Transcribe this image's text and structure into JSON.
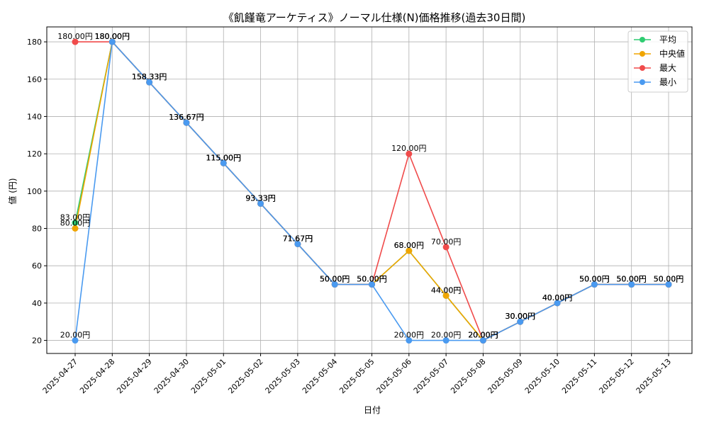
{
  "chart_data": {
    "type": "line",
    "title": "《飢饉竜アーケティス》ノーマル仕様(N)価格推移(過去30日間)",
    "xlabel": "日付",
    "ylabel": "値 (円)",
    "ylim": [
      13,
      188
    ],
    "yticks": [
      20,
      40,
      60,
      80,
      100,
      120,
      140,
      160,
      180
    ],
    "grid": true,
    "legend_position": "top-right",
    "categories": [
      "2025-04-27",
      "2025-04-28",
      "2025-04-29",
      "2025-04-30",
      "2025-05-01",
      "2025-05-02",
      "2025-05-03",
      "2025-05-04",
      "2025-05-05",
      "2025-05-06",
      "2025-05-07",
      "2025-05-08",
      "2025-05-09",
      "2025-05-10",
      "2025-05-11",
      "2025-05-12",
      "2025-05-13"
    ],
    "series": [
      {
        "name": "平均",
        "color": "#2ecc71",
        "values": [
          83.0,
          180.0,
          158.33,
          136.67,
          115.0,
          93.33,
          71.67,
          50.0,
          50.0,
          68.0,
          44.0,
          20.0,
          30.0,
          40.0,
          50.0,
          50.0,
          50.0
        ],
        "labels": [
          "83.00円",
          "180.00円",
          "158.33円",
          "136.67円",
          "115.00円",
          "93.33円",
          "71.67円",
          "50.00円",
          "50.00円",
          "68.00円",
          "44.00円",
          "20.00円",
          "30.00円",
          "40.00円",
          "50.00円",
          "50.00円",
          "50.00円"
        ]
      },
      {
        "name": "中央値",
        "color": "#f0a500",
        "values": [
          80.0,
          180.0,
          158.33,
          136.67,
          115.0,
          93.33,
          71.67,
          50.0,
          50.0,
          68.0,
          44.0,
          20.0,
          30.0,
          40.0,
          50.0,
          50.0,
          50.0
        ],
        "labels": [
          "80.00円",
          "180.00円",
          "158.33円",
          "136.67円",
          "115.00円",
          "93.33円",
          "71.67円",
          "50.00円",
          "50.00円",
          "68.00円",
          "44.00円",
          "20.00円",
          "30.00円",
          "40.00円",
          "50.00円",
          "50.00円",
          "50.00円"
        ]
      },
      {
        "name": "最大",
        "color": "#f04b4b",
        "values": [
          180.0,
          180.0,
          158.33,
          136.67,
          115.0,
          93.33,
          71.67,
          50.0,
          50.0,
          120.0,
          70.0,
          20.0,
          30.0,
          40.0,
          50.0,
          50.0,
          50.0
        ],
        "labels": [
          "180.00円",
          "180.00円",
          "158.33円",
          "136.67円",
          "115.00円",
          "93.33円",
          "71.67円",
          "50.00円",
          "50.00円",
          "120.00円",
          "70.00円",
          "20.00円",
          "30.00円",
          "40.00円",
          "50.00円",
          "50.00円",
          "50.00円"
        ]
      },
      {
        "name": "最小",
        "color": "#4a9af0",
        "values": [
          20.0,
          180.0,
          158.33,
          136.67,
          115.0,
          93.33,
          71.67,
          50.0,
          50.0,
          20.0,
          20.0,
          20.0,
          30.0,
          40.0,
          50.0,
          50.0,
          50.0
        ],
        "labels": [
          "20.00円",
          "180.00円",
          "158.33円",
          "136.67円",
          "115.00円",
          "93.33円",
          "71.67円",
          "50.00円",
          "50.00円",
          "20.00円",
          "20.00円",
          "20.00円",
          "30.00円",
          "40.00円",
          "50.00円",
          "50.00円",
          "50.00円"
        ]
      }
    ]
  }
}
